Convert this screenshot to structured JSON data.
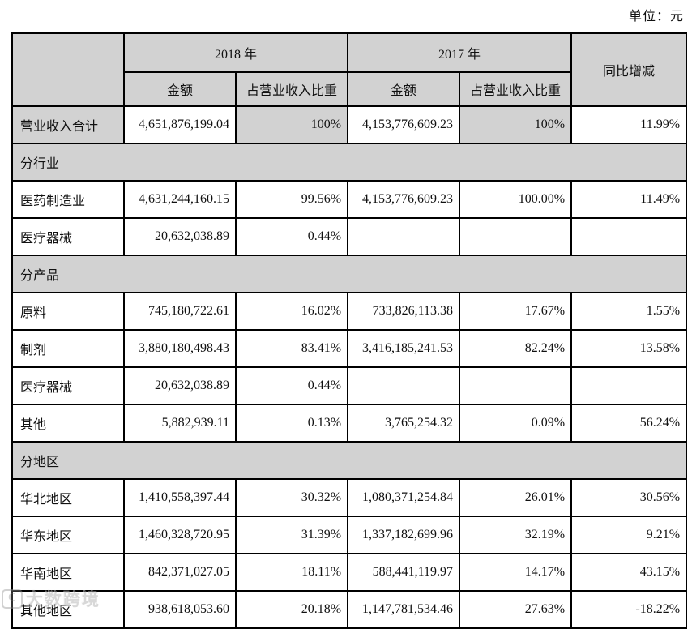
{
  "page": {
    "unit_label": "单位：元",
    "watermark_badge": "C",
    "watermark_text": "大数跨境"
  },
  "table": {
    "header": {
      "year_2018": "2018 年",
      "year_2017": "2017 年",
      "amount": "金额",
      "share": "占营业收入比重",
      "yoy": "同比增减"
    },
    "rows": [
      {
        "type": "data",
        "shaded": true,
        "cells": [
          "营业收入合计",
          "4,651,876,199.04",
          "100%",
          "4,153,776,609.23",
          "100%",
          "11.99%"
        ]
      },
      {
        "type": "section",
        "label": "分行业"
      },
      {
        "type": "data",
        "cells": [
          "医药制造业",
          "4,631,244,160.15",
          "99.56%",
          "4,153,776,609.23",
          "100.00%",
          "11.49%"
        ]
      },
      {
        "type": "data",
        "cells": [
          "医疗器械",
          "20,632,038.89",
          "0.44%",
          "",
          "",
          ""
        ]
      },
      {
        "type": "section",
        "label": "分产品"
      },
      {
        "type": "data",
        "cells": [
          "原料",
          "745,180,722.61",
          "16.02%",
          "733,826,113.38",
          "17.67%",
          "1.55%"
        ]
      },
      {
        "type": "data",
        "cells": [
          "制剂",
          "3,880,180,498.43",
          "83.41%",
          "3,416,185,241.53",
          "82.24%",
          "13.58%"
        ]
      },
      {
        "type": "data",
        "cells": [
          "医疗器械",
          "20,632,038.89",
          "0.44%",
          "",
          "",
          ""
        ]
      },
      {
        "type": "data",
        "cells": [
          "其他",
          "5,882,939.11",
          "0.13%",
          "3,765,254.32",
          "0.09%",
          "56.24%"
        ]
      },
      {
        "type": "section",
        "label": "分地区"
      },
      {
        "type": "data",
        "cells": [
          "华北地区",
          "1,410,558,397.44",
          "30.32%",
          "1,080,371,254.84",
          "26.01%",
          "30.56%"
        ]
      },
      {
        "type": "data",
        "cells": [
          "华东地区",
          "1,460,328,720.95",
          "31.39%",
          "1,337,182,699.96",
          "32.19%",
          "9.21%"
        ]
      },
      {
        "type": "data",
        "cells": [
          "华南地区",
          "842,371,027.05",
          "18.11%",
          "588,441,119.97",
          "14.17%",
          "43.15%"
        ]
      },
      {
        "type": "data",
        "cells": [
          "其他地区",
          "938,618,053.60",
          "20.18%",
          "1,147,781,534.46",
          "27.63%",
          "-18.22%"
        ]
      }
    ]
  }
}
